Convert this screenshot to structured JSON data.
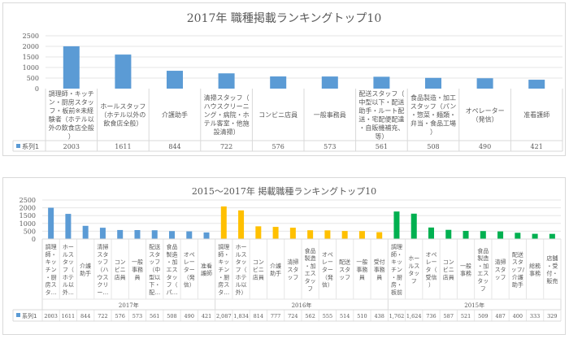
{
  "chart_data": [
    {
      "type": "bar",
      "title": "2017年 職種掲載ランキングトップ10",
      "legend": {
        "label": "系列1",
        "color": "#5B9BD5",
        "placement": "table-left"
      },
      "ylim": [
        0,
        2500
      ],
      "yticks": [
        "0",
        "500",
        "1000",
        "1500",
        "2000",
        "2500"
      ],
      "grid": true,
      "categories": [
        [
          "調理師・キッチ",
          "ン・厨房スタッ",
          "フ・板前※未経",
          "験者（ホテル以",
          "外の飲食店全般",
          "）"
        ],
        [
          "ホールスタッフ",
          "（ホテル以外の",
          "飲食店全般）"
        ],
        [
          "介護助手"
        ],
        [
          "清掃スタッフ（",
          "ハウスクリーニ",
          "ング・病院・ホ",
          "テル客室・他施",
          "設清掃）"
        ],
        [
          "コンビニ店員"
        ],
        [
          "一般事務員"
        ],
        [
          "配送スタッフ（",
          "中型以下・配送",
          "助手・ルート配",
          "送・宅配便配達",
          "・自販機補充、",
          "等）"
        ],
        [
          "食品製造・加工",
          "スタッフ（パン",
          "・惣菜・麺類・",
          "弁当・食品工場",
          "）"
        ],
        [
          "オペレーター",
          "（発信）"
        ],
        [
          "准看護師"
        ]
      ],
      "series": [
        {
          "name": "系列1",
          "values": [
            2003,
            1611,
            844,
            722,
            576,
            573,
            561,
            508,
            490,
            421
          ],
          "labels": [
            "2003",
            "1611",
            "844",
            "722",
            "576",
            "573",
            "561",
            "508",
            "490",
            "421"
          ]
        }
      ]
    },
    {
      "type": "bar",
      "title": "2015～2017年 掲載職種ランキングトップ10",
      "legend": {
        "label": "系列1",
        "color": "#5B9BD5",
        "placement": "table-left"
      },
      "ylim": [
        0,
        2500
      ],
      "yticks": [
        "0",
        "500",
        "1000",
        "1500",
        "2000",
        "2500"
      ],
      "grid": true,
      "groups": [
        {
          "label": "2017年",
          "color": "#5B9BD5",
          "categories": [
            [
              "調理",
              "師・",
              "キッ",
              "チン",
              "・厨",
              "房ス",
              "タ…"
            ],
            [
              "ホー",
              "ルス",
              "タッ",
              "フ（",
              "ホテ",
              "ル以",
              "外…"
            ],
            [
              "介護",
              "助手"
            ],
            [
              "清掃",
              "スタ",
              "ッフ",
              "（ハ",
              "ウス",
              "クリ",
              "ー…"
            ],
            [
              "コン",
              "ビニ",
              "店員"
            ],
            [
              "一般",
              "事務",
              "員"
            ],
            [
              "配送",
              "スタ",
              "ッフ",
              "（中",
              "型以",
              "下・",
              "配…"
            ],
            [
              "食品",
              "製造",
              "・加",
              "エス",
              "タッ",
              "フ（",
              "パ…"
            ],
            [
              "オペ",
              "レー",
              "ター",
              "（発",
              "信）"
            ],
            [
              "准看",
              "護師"
            ]
          ],
          "values": [
            2003,
            1611,
            844,
            722,
            576,
            573,
            561,
            508,
            490,
            421
          ],
          "labels": [
            "2003",
            "1611",
            "844",
            "722",
            "576",
            "573",
            "561",
            "508",
            "490",
            "421"
          ]
        },
        {
          "label": "2016年",
          "color": "#FFC000",
          "categories": [
            [
              "調理",
              "師・",
              "キッ",
              "チン",
              "・厨",
              "房ス",
              "タ…"
            ],
            [
              "ホー",
              "ルス",
              "タッ",
              "フ（",
              "ホテ",
              "ル以",
              "外）"
            ],
            [
              "コン",
              "ビニ",
              "店員"
            ],
            [
              "介護",
              "助手"
            ],
            [
              "清掃",
              "スタ",
              "ッフ"
            ],
            [
              "食品",
              "製造",
              "・加",
              "エス",
              "タッ",
              "フ"
            ],
            [
              "オペ",
              "レー",
              "ター",
              "（発",
              "信）"
            ],
            [
              "配送",
              "スタ",
              "ッフ"
            ],
            [
              "一般",
              "事務",
              "員"
            ],
            [
              "受付",
              "事務",
              "員"
            ]
          ],
          "values": [
            2087,
            1834,
            814,
            777,
            724,
            562,
            555,
            514,
            510,
            438
          ],
          "labels": [
            "2,087",
            "1,834",
            "814",
            "777",
            "724",
            "562",
            "555",
            "514",
            "510",
            "438"
          ]
        },
        {
          "label": "2015年",
          "color": "#00B050",
          "categories": [
            [
              "調理",
              "師・",
              "キッ",
              "チン",
              "・厨",
              "房・",
              "板前"
            ],
            [
              "ホー",
              "ルス",
              "タッ",
              "フ"
            ],
            [
              "オペ",
              "レー",
              "タ（",
              "受信",
              "）"
            ],
            [
              "コン",
              "ビニ",
              "店員"
            ],
            [
              "一般",
              "事務"
            ],
            [
              "食品",
              "製造",
              "・加",
              "エス",
              "タッ",
              "フ"
            ],
            [
              "清掃",
              "スタ",
              "ッフ"
            ],
            [
              "配送",
              "スタ",
              "ッフ/",
              "介護",
              "助手"
            ],
            [
              "総務",
              "事務"
            ],
            [
              "店舗",
              "・受",
              "付・",
              "販売"
            ]
          ],
          "values": [
            1762,
            1624,
            736,
            587,
            521,
            509,
            487,
            400,
            333,
            329
          ],
          "labels": [
            "1,762",
            "1,624",
            "736",
            "587",
            "521",
            "509",
            "487",
            "400",
            "333",
            "329"
          ]
        }
      ]
    }
  ]
}
